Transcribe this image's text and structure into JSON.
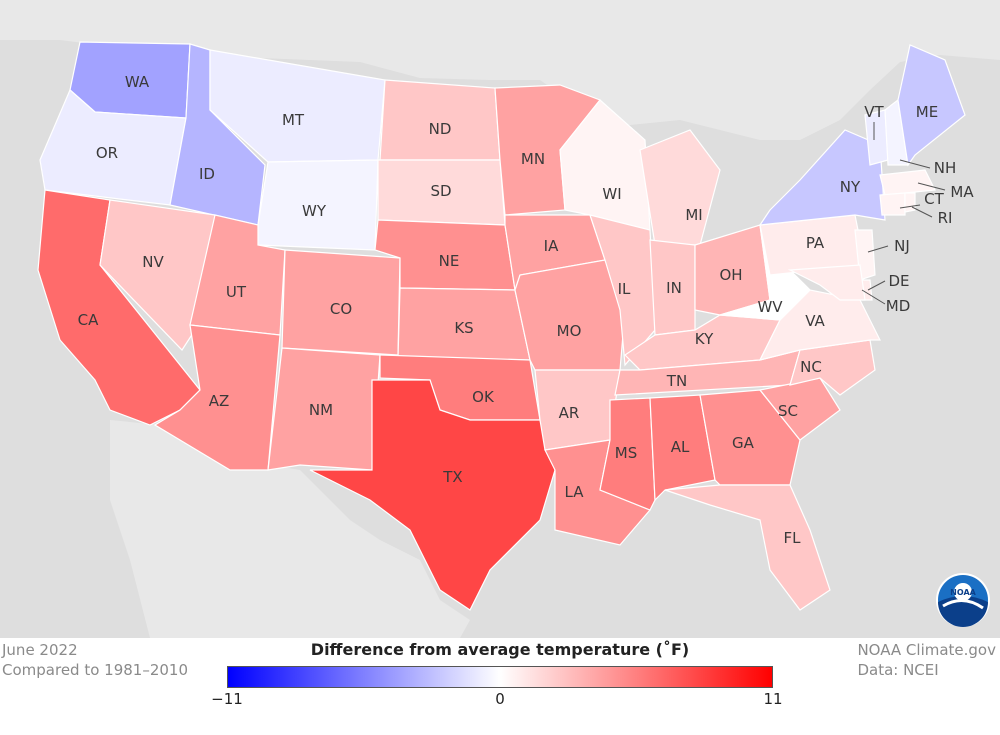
{
  "map": {
    "states": [
      {
        "abbr": "WA",
        "anomaly": -2.5
      },
      {
        "abbr": "OR",
        "anomaly": -0.5
      },
      {
        "abbr": "CA",
        "anomaly": 4.0
      },
      {
        "abbr": "ID",
        "anomaly": -2.0
      },
      {
        "abbr": "NV",
        "anomaly": 1.5
      },
      {
        "abbr": "MT",
        "anomaly": -0.5
      },
      {
        "abbr": "WY",
        "anomaly": -0.3
      },
      {
        "abbr": "UT",
        "anomaly": 2.5
      },
      {
        "abbr": "AZ",
        "anomaly": 3.0
      },
      {
        "abbr": "CO",
        "anomaly": 2.5
      },
      {
        "abbr": "NM",
        "anomaly": 2.5
      },
      {
        "abbr": "ND",
        "anomaly": 1.5
      },
      {
        "abbr": "SD",
        "anomaly": 1.0
      },
      {
        "abbr": "NE",
        "anomaly": 3.0
      },
      {
        "abbr": "KS",
        "anomaly": 2.5
      },
      {
        "abbr": "OK",
        "anomaly": 3.5
      },
      {
        "abbr": "TX",
        "anomaly": 5.0
      },
      {
        "abbr": "MN",
        "anomaly": 2.5
      },
      {
        "abbr": "IA",
        "anomaly": 2.5
      },
      {
        "abbr": "MO",
        "anomaly": 2.5
      },
      {
        "abbr": "AR",
        "anomaly": 1.5
      },
      {
        "abbr": "LA",
        "anomaly": 3.0
      },
      {
        "abbr": "WI",
        "anomaly": 0.3
      },
      {
        "abbr": "IL",
        "anomaly": 1.5
      },
      {
        "abbr": "MI",
        "anomaly": 1.0
      },
      {
        "abbr": "IN",
        "anomaly": 1.5
      },
      {
        "abbr": "OH",
        "anomaly": 2.0
      },
      {
        "abbr": "KY",
        "anomaly": 1.5
      },
      {
        "abbr": "TN",
        "anomaly": 2.0
      },
      {
        "abbr": "MS",
        "anomaly": 3.5
      },
      {
        "abbr": "AL",
        "anomaly": 3.5
      },
      {
        "abbr": "GA",
        "anomaly": 3.0
      },
      {
        "abbr": "FL",
        "anomaly": 1.5
      },
      {
        "abbr": "SC",
        "anomaly": 2.5
      },
      {
        "abbr": "NC",
        "anomaly": 1.5
      },
      {
        "abbr": "VA",
        "anomaly": 0.5
      },
      {
        "abbr": "WV",
        "anomaly": 0.0
      },
      {
        "abbr": "PA",
        "anomaly": 0.5
      },
      {
        "abbr": "NY",
        "anomaly": -1.5
      },
      {
        "abbr": "VT",
        "anomaly": -0.5
      },
      {
        "abbr": "NH",
        "anomaly": -0.3
      },
      {
        "abbr": "ME",
        "anomaly": -1.5
      },
      {
        "abbr": "MA",
        "anomaly": 0.3
      },
      {
        "abbr": "CT",
        "anomaly": 0.3
      },
      {
        "abbr": "RI",
        "anomaly": 0.3
      },
      {
        "abbr": "NJ",
        "anomaly": 0.3
      },
      {
        "abbr": "DE",
        "anomaly": 0.5
      },
      {
        "abbr": "MD",
        "anomaly": 0.5
      }
    ],
    "colors": {
      "min": "#0000ff",
      "zero": "#ffffff",
      "max": "#ff0000",
      "background": "#dedede",
      "canada_mexico": "#e8e8e8"
    }
  },
  "footer": {
    "left_line1": "June 2022",
    "left_line2": "Compared to 1981–2010",
    "right_line1": "NOAA Climate.gov",
    "right_line2": "Data: NCEI"
  },
  "legend": {
    "title": "Difference from average temperature (˚F)",
    "tick_min": "−11",
    "tick_mid": "0",
    "tick_max": "11",
    "min_value": -11,
    "max_value": 11
  },
  "logo": {
    "text": "NOAA",
    "icon": "noaa-logo-icon"
  }
}
